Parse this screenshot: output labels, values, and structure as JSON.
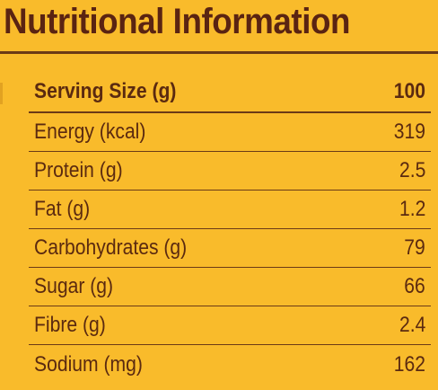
{
  "title": "Nutritional Information",
  "header": {
    "label": "Serving Size (g)",
    "value": "100"
  },
  "rows": [
    {
      "label": "Energy (kcal)",
      "value": "319"
    },
    {
      "label": "Protein (g)",
      "value": "2.5"
    },
    {
      "label": "Fat (g)",
      "value": "1.2"
    },
    {
      "label": "Carbohydrates (g)",
      "value": "79"
    },
    {
      "label": "Sugar (g)",
      "value": "66"
    },
    {
      "label": "Fibre (g)",
      "value": "2.4"
    },
    {
      "label": "Sodium (mg)",
      "value": "162"
    }
  ],
  "colors": {
    "background": "#f9bb2b",
    "text": "#5a2412",
    "rule": "#6b3a16"
  }
}
